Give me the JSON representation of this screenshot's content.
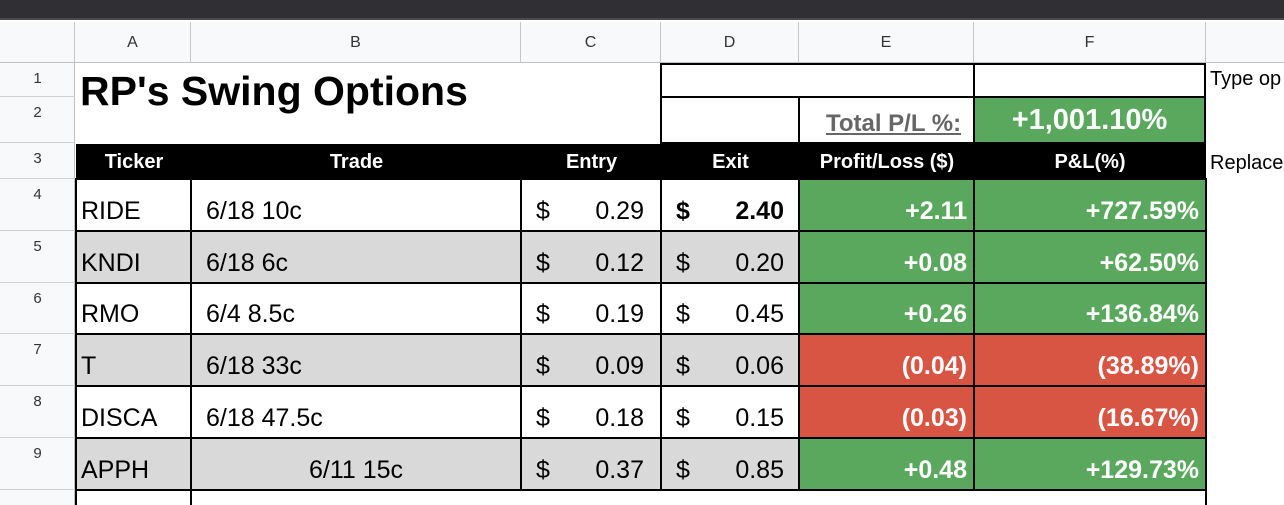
{
  "columns": [
    "A",
    "B",
    "C",
    "D",
    "E",
    "F"
  ],
  "row_numbers": [
    "1",
    "2",
    "3",
    "4",
    "5",
    "6",
    "7",
    "8",
    "9"
  ],
  "title": "RP's Swing Options",
  "total_label": "Total P/L %:",
  "total_value": "+1,001.10%",
  "side_notes": [
    "Type op",
    "Replace"
  ],
  "headers": [
    "Ticker",
    "Trade",
    "Entry",
    "Exit",
    "Profit/Loss ($)",
    "P&L(%)"
  ],
  "currency_symbol": "$",
  "rows": [
    {
      "ticker": "RIDE",
      "trade": "6/18 10c",
      "entry": "0.29",
      "exit": "2.40",
      "pl": "+2.11",
      "pct": "+727.59%",
      "status": "gain"
    },
    {
      "ticker": "KNDI",
      "trade": "6/18 6c",
      "entry": "0.12",
      "exit": "0.20",
      "pl": "+0.08",
      "pct": "+62.50%",
      "status": "gain"
    },
    {
      "ticker": "RMO",
      "trade": "6/4 8.5c",
      "entry": "0.19",
      "exit": "0.45",
      "pl": "+0.26",
      "pct": "+136.84%",
      "status": "gain"
    },
    {
      "ticker": "T",
      "trade": "6/18 33c",
      "entry": "0.09",
      "exit": "0.06",
      "pl": "(0.04)",
      "pct": "(38.89%)",
      "status": "loss"
    },
    {
      "ticker": "DISCA",
      "trade": "6/18 47.5c",
      "entry": "0.18",
      "exit": "0.15",
      "pl": "(0.03)",
      "pct": "(16.67%)",
      "status": "loss"
    },
    {
      "ticker": "APPH",
      "trade": "6/11 15c",
      "entry": "0.37",
      "exit": "0.85",
      "pl": "+0.48",
      "pct": "+129.73%",
      "status": "gain"
    }
  ],
  "colors": {
    "gain": "#5aa85d",
    "loss": "#d85443",
    "header_bg": "#000000",
    "alt_row": "#d9d9d9",
    "total_label": "#666666"
  }
}
